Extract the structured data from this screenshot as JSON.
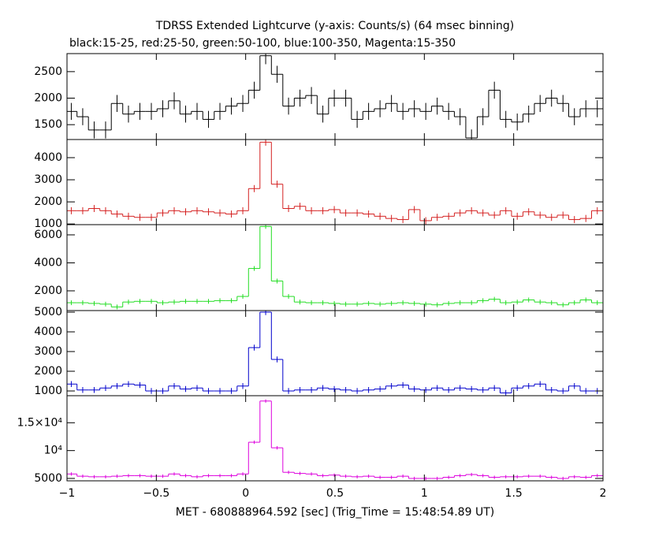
{
  "chart_data": {
    "type": "step",
    "title": "TDRSS Extended Lightcurve (y-axis: Counts/s) (64 msec binning)",
    "subtitle": "black:15-25, red:25-50, green:50-100, blue:100-350, Magenta:15-350",
    "x_label": "MET - 680888964.592 [sec] (Trig_Time = 15:48:54.89 UT)",
    "xlim": [
      -1,
      2
    ],
    "xticks": [
      {
        "value": -1,
        "label": "−1"
      },
      {
        "value": -0.5,
        "label": "−0.5"
      },
      0,
      0.5,
      1,
      1.5,
      2
    ],
    "bins": [
      -1.008,
      -0.944,
      -0.88,
      -0.816,
      -0.752,
      -0.688,
      -0.624,
      -0.56,
      -0.496,
      -0.432,
      -0.368,
      -0.304,
      -0.24,
      -0.176,
      -0.112,
      -0.048,
      0.016,
      0.08,
      0.144,
      0.208,
      0.272,
      0.336,
      0.4,
      0.464,
      0.528,
      0.592,
      0.656,
      0.72,
      0.784,
      0.848,
      0.912,
      0.976,
      1.04,
      1.104,
      1.168,
      1.232,
      1.296,
      1.36,
      1.424,
      1.488,
      1.552,
      1.616,
      1.68,
      1.744,
      1.808,
      1.872,
      1.936,
      2.0
    ],
    "panels": [
      {
        "color": "#000000",
        "ylim": [
          1220,
          2840
        ],
        "yticks": [
          1500,
          2000,
          2500
        ],
        "values": [
          1750,
          1650,
          1400,
          1400,
          1900,
          1700,
          1750,
          1750,
          1800,
          1950,
          1700,
          1750,
          1600,
          1750,
          1850,
          1900,
          2150,
          2800,
          2450,
          1850,
          2000,
          2050,
          1700,
          2000,
          2000,
          1600,
          1750,
          1800,
          1900,
          1750,
          1800,
          1750,
          1850,
          1750,
          1650,
          1250,
          1650,
          2150,
          1600,
          1550,
          1700,
          1900,
          2000,
          1900,
          1650,
          1800,
          1800
        ],
        "errors": [
          160,
          160,
          160,
          160,
          160,
          160,
          160,
          160,
          160,
          160,
          160,
          160,
          160,
          160,
          160,
          160,
          160,
          160,
          160,
          160,
          160,
          160,
          160,
          160,
          160,
          160,
          160,
          160,
          160,
          160,
          160,
          160,
          160,
          160,
          160,
          160,
          160,
          160,
          160,
          160,
          160,
          160,
          160,
          160,
          160,
          160,
          160
        ]
      },
      {
        "color": "#d42020",
        "ylim": [
          970,
          4820
        ],
        "yticks": [
          1000,
          2000,
          3000,
          4000
        ],
        "values": [
          1600,
          1600,
          1700,
          1600,
          1450,
          1350,
          1300,
          1300,
          1500,
          1600,
          1550,
          1600,
          1550,
          1500,
          1450,
          1600,
          2600,
          4700,
          2800,
          1700,
          1800,
          1600,
          1600,
          1650,
          1500,
          1500,
          1450,
          1350,
          1250,
          1200,
          1650,
          1150,
          1300,
          1350,
          1500,
          1600,
          1500,
          1400,
          1600,
          1350,
          1550,
          1400,
          1300,
          1400,
          1200,
          1250,
          1600
        ],
        "errors": [
          160,
          160,
          160,
          160,
          160,
          160,
          160,
          160,
          160,
          160,
          160,
          160,
          160,
          160,
          160,
          160,
          160,
          160,
          160,
          160,
          160,
          160,
          160,
          160,
          160,
          160,
          160,
          160,
          160,
          160,
          160,
          160,
          160,
          160,
          160,
          160,
          160,
          160,
          160,
          160,
          160,
          160,
          160,
          160,
          160,
          160,
          160
        ]
      },
      {
        "color": "#22dd22",
        "ylim": [
          590,
          6730
        ],
        "yticks": [
          2000,
          4000,
          6000
        ],
        "values": [
          1150,
          1150,
          1100,
          1050,
          850,
          1200,
          1250,
          1250,
          1150,
          1200,
          1250,
          1250,
          1250,
          1300,
          1300,
          1600,
          3600,
          6600,
          2700,
          1600,
          1200,
          1150,
          1150,
          1100,
          1050,
          1050,
          1100,
          1050,
          1100,
          1150,
          1100,
          1050,
          1000,
          1100,
          1150,
          1150,
          1300,
          1400,
          1150,
          1200,
          1350,
          1200,
          1150,
          1000,
          1150,
          1350,
          1150
        ],
        "errors": [
          170,
          170,
          170,
          170,
          170,
          170,
          170,
          170,
          170,
          170,
          170,
          170,
          170,
          170,
          170,
          170,
          170,
          170,
          170,
          170,
          170,
          170,
          170,
          170,
          170,
          170,
          170,
          170,
          170,
          170,
          170,
          170,
          170,
          170,
          170,
          170,
          170,
          170,
          170,
          170,
          170,
          170,
          170,
          170,
          170,
          170,
          170
        ]
      },
      {
        "color": "#0000cc",
        "ylim": [
          760,
          5080
        ],
        "yticks": [
          1000,
          2000,
          3000,
          4000,
          5000
        ],
        "values": [
          1350,
          1050,
          1050,
          1150,
          1250,
          1350,
          1300,
          1000,
          1000,
          1250,
          1100,
          1150,
          1000,
          1000,
          1000,
          1250,
          3200,
          5000,
          2600,
          1000,
          1050,
          1050,
          1150,
          1100,
          1050,
          1000,
          1050,
          1100,
          1250,
          1300,
          1100,
          1050,
          1150,
          1050,
          1150,
          1100,
          1050,
          1150,
          900,
          1150,
          1250,
          1350,
          1050,
          1000,
          1250,
          1000,
          1000
        ],
        "errors": [
          150,
          150,
          150,
          150,
          150,
          150,
          150,
          150,
          150,
          150,
          150,
          150,
          150,
          150,
          150,
          150,
          150,
          150,
          150,
          150,
          150,
          150,
          150,
          150,
          150,
          150,
          150,
          150,
          150,
          150,
          150,
          150,
          150,
          150,
          150,
          150,
          150,
          150,
          150,
          150,
          150,
          150,
          150,
          150,
          150,
          150,
          150
        ]
      },
      {
        "color": "#dd00dd",
        "ylim": [
          4570,
          19860
        ],
        "yticks": [
          5000,
          {
            "value": 10000,
            "label": "10⁴"
          },
          {
            "value": 15000,
            "label": "1.5×10⁴"
          }
        ],
        "values": [
          5800,
          5400,
          5300,
          5300,
          5400,
          5500,
          5500,
          5400,
          5400,
          5800,
          5500,
          5300,
          5500,
          5500,
          5500,
          5800,
          11500,
          18900,
          10500,
          6100,
          5900,
          5800,
          5500,
          5600,
          5400,
          5300,
          5400,
          5200,
          5200,
          5400,
          5000,
          5000,
          5000,
          5200,
          5500,
          5700,
          5500,
          5200,
          5300,
          5300,
          5400,
          5400,
          5200,
          5000,
          5300,
          5200,
          5500
        ],
        "errors": [
          300,
          300,
          300,
          300,
          300,
          300,
          300,
          300,
          300,
          300,
          300,
          300,
          300,
          300,
          300,
          300,
          300,
          300,
          300,
          300,
          300,
          300,
          300,
          300,
          300,
          300,
          300,
          300,
          300,
          300,
          300,
          300,
          300,
          300,
          300,
          300,
          300,
          300,
          300,
          300,
          300,
          300,
          300,
          300,
          300,
          300,
          300
        ]
      }
    ]
  }
}
